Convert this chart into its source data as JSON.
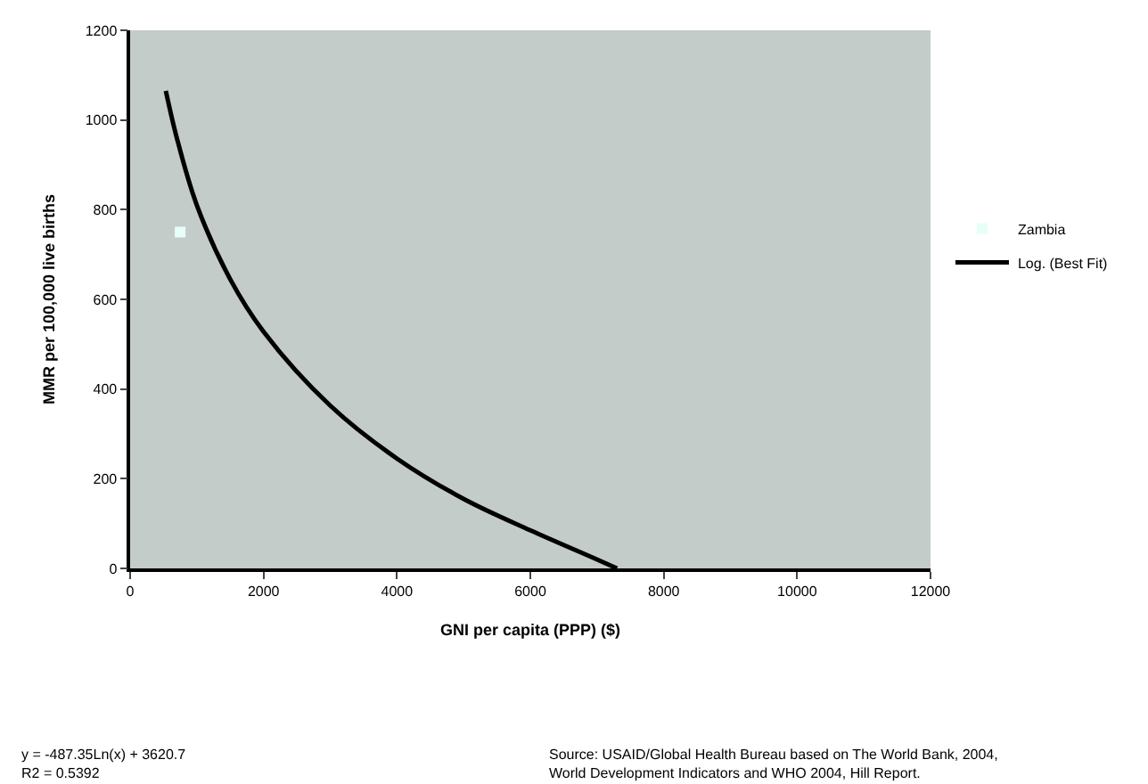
{
  "chart_data": {
    "type": "scatter",
    "xlabel": "GNI per capita (PPP) ($)",
    "ylabel": "MMR per 100,000 live births",
    "xlim": [
      0,
      12000
    ],
    "xticks": [
      0,
      2000,
      4000,
      6000,
      8000,
      10000,
      12000
    ],
    "ylim": [
      0,
      1200
    ],
    "yticks": [
      0,
      200,
      400,
      600,
      800,
      1000,
      1200
    ],
    "grid": false,
    "legend": "right",
    "series": [
      {
        "name": "Zambia",
        "color": "#e6fff8",
        "marker": "square",
        "x": [
          750
        ],
        "values": [
          750
        ]
      },
      {
        "name": "Log. (Best Fit)",
        "type": "line",
        "color": "#000000",
        "marker": "none",
        "line_style": "solid",
        "x": [
          535,
          700,
          1000,
          1500,
          2000,
          3000,
          4000,
          5000,
          6000,
          7000,
          7300
        ],
        "values": [
          1065,
          960,
          810,
          645,
          528,
          363,
          245,
          155,
          85,
          20,
          0
        ]
      }
    ],
    "annotations": [
      "y = -487.35Ln(x) + 3620.7\nR2 = 0.5392",
      "Source: USAID/Global Health Bureau based on The World Bank, 2004,\nWorld Development Indicators and WHO 2004, Hill Report."
    ]
  }
}
